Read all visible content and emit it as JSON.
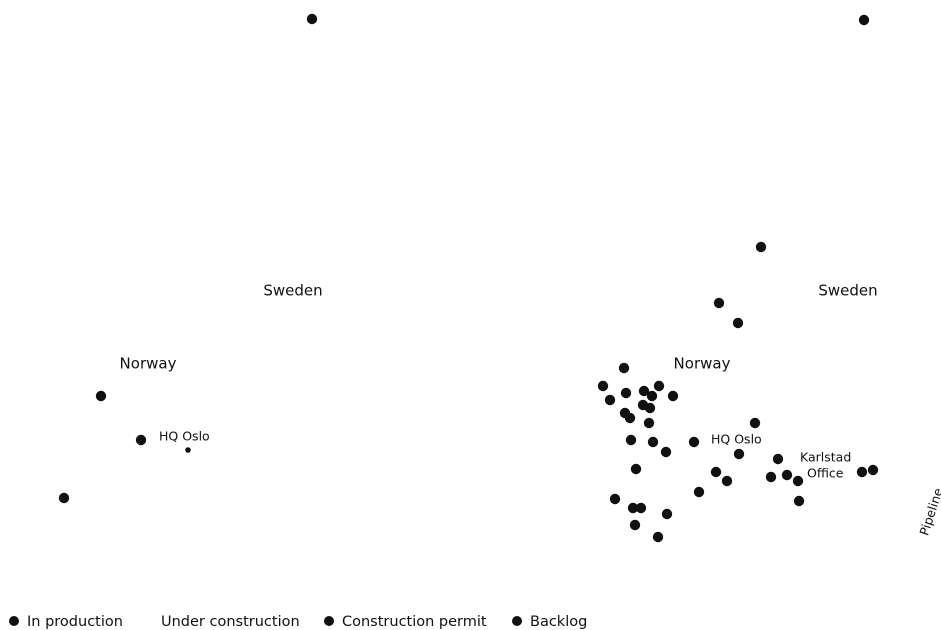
{
  "left_map": {
    "country_labels": [
      "Sweden",
      "Norway"
    ],
    "office_label": "HQ Oslo"
  },
  "right_map": {
    "country_labels": [
      "Sweden",
      "Norway"
    ],
    "office_labels": [
      "HQ Oslo"
    ],
    "karlstad_office": [
      "Karlstad",
      "Office"
    ],
    "side_label": "Pipeline"
  },
  "legend": [
    "In production",
    "Under construction",
    "Construction permit",
    "Backlog"
  ]
}
